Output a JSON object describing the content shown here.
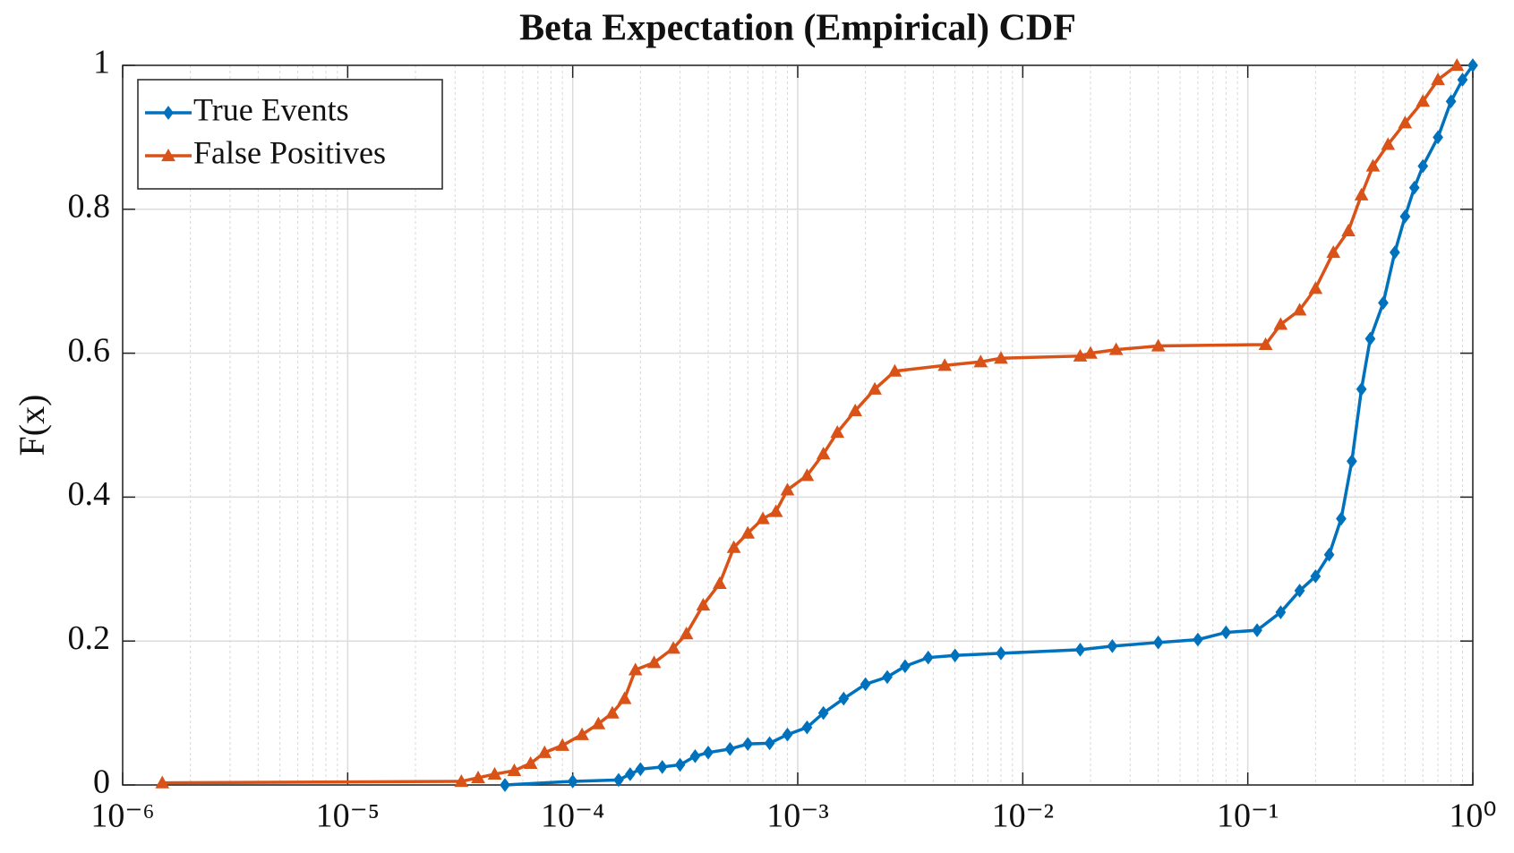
{
  "chart_data": {
    "type": "line",
    "title": "Beta Expectation (Empirical) CDF",
    "ylabel": "F(x)",
    "xscale": "log",
    "xlim": [
      1e-06,
      1
    ],
    "ylim": [
      0,
      1
    ],
    "xticks": [
      {
        "value": 1e-06,
        "label": "10⁻⁶"
      },
      {
        "value": 1e-05,
        "label": "10⁻⁵"
      },
      {
        "value": 0.0001,
        "label": "10⁻⁴"
      },
      {
        "value": 0.001,
        "label": "10⁻³"
      },
      {
        "value": 0.01,
        "label": "10⁻²"
      },
      {
        "value": 0.1,
        "label": "10⁻¹"
      },
      {
        "value": 1,
        "label": "10⁰"
      }
    ],
    "yticks": [
      0,
      0.2,
      0.4,
      0.6,
      0.8,
      1
    ],
    "grid": true,
    "minor_grid": true,
    "legend": "northwest",
    "series": [
      {
        "name": "True Events",
        "color": "#0072BD",
        "marker": "diamond",
        "x": [
          5e-05,
          0.0001,
          0.00016,
          0.00018,
          0.0002,
          0.00025,
          0.0003,
          0.00035,
          0.0004,
          0.0005,
          0.0006,
          0.00075,
          0.0009,
          0.0011,
          0.0013,
          0.0016,
          0.002,
          0.0025,
          0.003,
          0.0038,
          0.005,
          0.008,
          0.018,
          0.025,
          0.04,
          0.06,
          0.08,
          0.11,
          0.14,
          0.17,
          0.2,
          0.23,
          0.26,
          0.29,
          0.32,
          0.35,
          0.4,
          0.45,
          0.5,
          0.55,
          0.6,
          0.7,
          0.8,
          0.9,
          1
        ],
        "values": [
          0,
          0.005,
          0.007,
          0.015,
          0.022,
          0.025,
          0.028,
          0.04,
          0.045,
          0.05,
          0.057,
          0.058,
          0.07,
          0.08,
          0.1,
          0.12,
          0.14,
          0.15,
          0.165,
          0.177,
          0.18,
          0.183,
          0.188,
          0.193,
          0.198,
          0.202,
          0.212,
          0.215,
          0.24,
          0.27,
          0.29,
          0.32,
          0.37,
          0.45,
          0.55,
          0.62,
          0.67,
          0.74,
          0.79,
          0.83,
          0.86,
          0.9,
          0.95,
          0.98,
          1
        ]
      },
      {
        "name": "False Positives",
        "color": "#D95319",
        "marker": "triangle",
        "x": [
          1.5e-06,
          3.2e-05,
          3.8e-05,
          4.5e-05,
          5.5e-05,
          6.5e-05,
          7.5e-05,
          9e-05,
          0.00011,
          0.00013,
          0.00015,
          0.00017,
          0.00019,
          0.00023,
          0.00028,
          0.00032,
          0.00038,
          0.00045,
          0.00052,
          0.0006,
          0.0007,
          0.0008,
          0.0009,
          0.0011,
          0.0013,
          0.0015,
          0.0018,
          0.0022,
          0.0027,
          0.0045,
          0.0065,
          0.008,
          0.018,
          0.02,
          0.026,
          0.04,
          0.12,
          0.14,
          0.17,
          0.2,
          0.24,
          0.28,
          0.32,
          0.36,
          0.42,
          0.5,
          0.6,
          0.7,
          0.85
        ],
        "values": [
          0.003,
          0.005,
          0.01,
          0.015,
          0.02,
          0.03,
          0.045,
          0.055,
          0.07,
          0.085,
          0.1,
          0.12,
          0.16,
          0.17,
          0.19,
          0.21,
          0.25,
          0.28,
          0.33,
          0.35,
          0.37,
          0.38,
          0.41,
          0.43,
          0.46,
          0.49,
          0.52,
          0.55,
          0.575,
          0.583,
          0.588,
          0.593,
          0.596,
          0.6,
          0.605,
          0.61,
          0.612,
          0.64,
          0.66,
          0.69,
          0.74,
          0.77,
          0.82,
          0.86,
          0.89,
          0.92,
          0.95,
          0.98,
          1
        ]
      }
    ]
  }
}
